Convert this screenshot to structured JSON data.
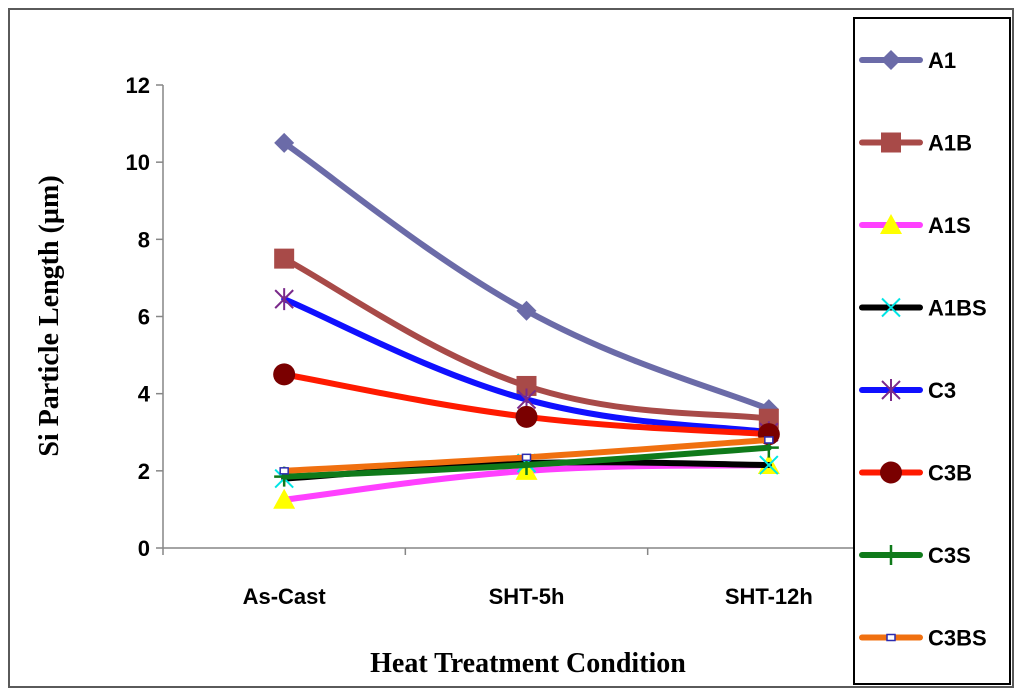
{
  "chart_data": {
    "type": "line",
    "title": "",
    "xlabel": "Heat Treatment Condition",
    "ylabel": "Si Particle Length (µm)",
    "categories": [
      "As-Cast",
      "SHT-5h",
      "SHT-12h"
    ],
    "ylim": [
      0,
      12
    ],
    "yticks": [
      0,
      2,
      4,
      6,
      8,
      10,
      12
    ],
    "grid": false,
    "legend_position": "right",
    "series": [
      {
        "name": "A1",
        "values": [
          10.5,
          6.15,
          3.6
        ],
        "color": "#6b6ba8",
        "marker": "diamond"
      },
      {
        "name": "A1B",
        "values": [
          7.5,
          4.2,
          3.35
        ],
        "color": "#a84a48",
        "marker": "square"
      },
      {
        "name": "A1S",
        "values": [
          1.25,
          2.0,
          2.15
        ],
        "color": "#ff40ff",
        "marker": "triangle"
      },
      {
        "name": "A1BS",
        "values": [
          1.8,
          2.2,
          2.15
        ],
        "color": "#000000",
        "marker": "x"
      },
      {
        "name": "C3",
        "values": [
          6.45,
          3.85,
          3.0
        ],
        "color": "#1010ff",
        "marker": "asterisk"
      },
      {
        "name": "C3B",
        "values": [
          4.5,
          3.4,
          2.95
        ],
        "color": "#ff1a00",
        "marker": "circle"
      },
      {
        "name": "C3S",
        "values": [
          1.85,
          2.15,
          2.6
        ],
        "color": "#0f7a1a",
        "marker": "plus"
      },
      {
        "name": "C3BS",
        "values": [
          2.0,
          2.35,
          2.8
        ],
        "color": "#f07010",
        "marker": "smallsquare"
      }
    ]
  }
}
